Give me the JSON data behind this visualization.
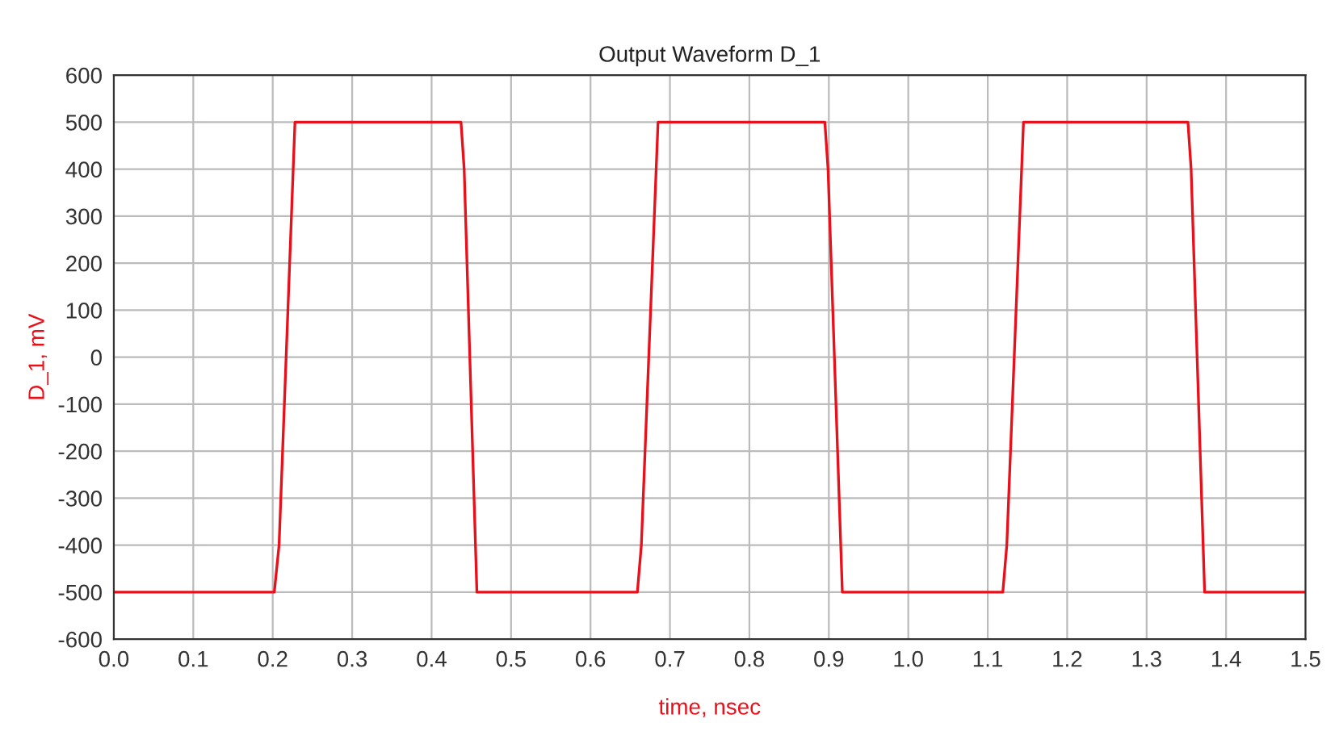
{
  "chart_data": {
    "type": "line",
    "title": "Output Waveform D_1",
    "xlabel": "time, nsec",
    "ylabel": "D_1, mV",
    "x": [
      0.0,
      0.202,
      0.208,
      0.228,
      0.437,
      0.441,
      0.457,
      0.659,
      0.664,
      0.685,
      0.895,
      0.899,
      0.917,
      1.119,
      1.124,
      1.145,
      1.352,
      1.356,
      1.373,
      1.5
    ],
    "series": [
      {
        "color": "#e8101a",
        "values": [
          -500,
          -500,
          -400,
          500,
          500,
          400,
          -500,
          -500,
          -400,
          500,
          500,
          400,
          -500,
          -500,
          -400,
          500,
          500,
          400,
          -500,
          -500
        ]
      }
    ],
    "xlim": [
      0.0,
      1.5
    ],
    "xticks": [
      {
        "value": 0.0,
        "label": "0.0"
      },
      0.1,
      0.2,
      0.3,
      0.4,
      0.5,
      0.6,
      0.7,
      0.8,
      0.9,
      {
        "value": 1.0,
        "label": "1.0"
      },
      1.1,
      1.2,
      1.3,
      1.4,
      1.5
    ],
    "ylim": [
      -600,
      600
    ],
    "yticks": [
      -600,
      -500,
      -400,
      -300,
      -200,
      -100,
      0,
      100,
      200,
      300,
      400,
      500,
      600
    ],
    "grid": true,
    "legend": false,
    "marker": "none",
    "line_style": "solid"
  }
}
